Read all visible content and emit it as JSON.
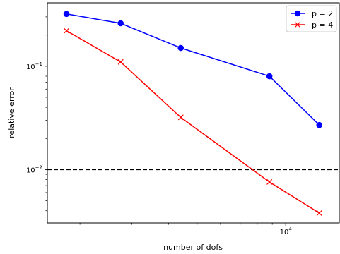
{
  "chart_data": {
    "type": "line",
    "xscale": "log",
    "yscale": "log",
    "xlabel": "number of dofs",
    "ylabel": "relative error",
    "xlim": [
      1550,
      15200
    ],
    "ylim": [
      0.00305,
      0.41
    ],
    "grid": false,
    "legend_position": "top-right",
    "x_major_ticks": [
      {
        "value": 10000,
        "base": "10",
        "exp": "4"
      }
    ],
    "y_major_ticks": [
      {
        "value": 0.1,
        "base": "10",
        "exp": "−1"
      },
      {
        "value": 0.01,
        "base": "10",
        "exp": "−2"
      }
    ],
    "x_minor_ticks": [
      2000,
      3000,
      4000,
      5000,
      6000,
      7000,
      8000,
      9000
    ],
    "y_minor_ticks": [
      0.004,
      0.005,
      0.006,
      0.007,
      0.008,
      0.009,
      0.02,
      0.03,
      0.04,
      0.05,
      0.06,
      0.07,
      0.08,
      0.09,
      0.2,
      0.3,
      0.4
    ],
    "reference_line": {
      "y": 0.01,
      "style": "dashed",
      "color": "#000000"
    },
    "series": [
      {
        "name": "p = 2",
        "color": "#0000ff",
        "marker": "circle",
        "x": [
          1800,
          2750,
          4400,
          8800,
          13000
        ],
        "y": [
          0.32,
          0.26,
          0.15,
          0.08,
          0.027
        ]
      },
      {
        "name": "p = 4",
        "color": "#ff0000",
        "marker": "x",
        "x": [
          1800,
          2750,
          4400,
          8800,
          13000
        ],
        "y": [
          0.22,
          0.11,
          0.032,
          0.0076,
          0.0038
        ]
      }
    ]
  }
}
